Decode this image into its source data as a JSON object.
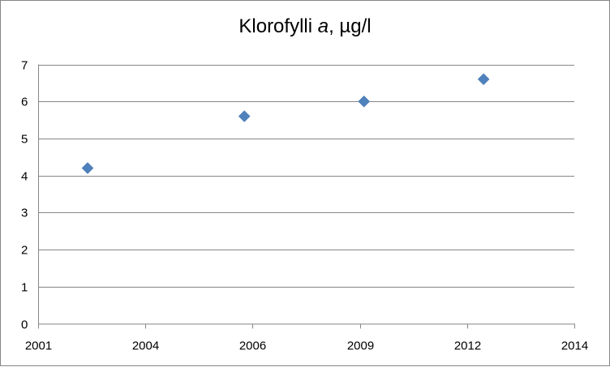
{
  "chart_data": {
    "type": "scatter",
    "title_main": "Klorofylli ",
    "title_italic": "a",
    "title_unit": ", µg/l",
    "xlabel": "",
    "ylabel": "",
    "xlim": [
      2001,
      2014
    ],
    "ylim": [
      0,
      7
    ],
    "x_tick_labels": [
      "2001",
      "2004",
      "2006",
      "2009",
      "2012",
      "2014"
    ],
    "y_ticks": [
      0,
      1,
      2,
      3,
      4,
      5,
      6,
      7
    ],
    "grid": "horizontal",
    "legend": "none",
    "marker": "diamond",
    "color": "#4F81BD",
    "points": [
      {
        "x": 2002.2,
        "y": 4.2
      },
      {
        "x": 2006.0,
        "y": 5.6
      },
      {
        "x": 2008.9,
        "y": 6.0
      },
      {
        "x": 2011.8,
        "y": 6.6
      }
    ]
  }
}
